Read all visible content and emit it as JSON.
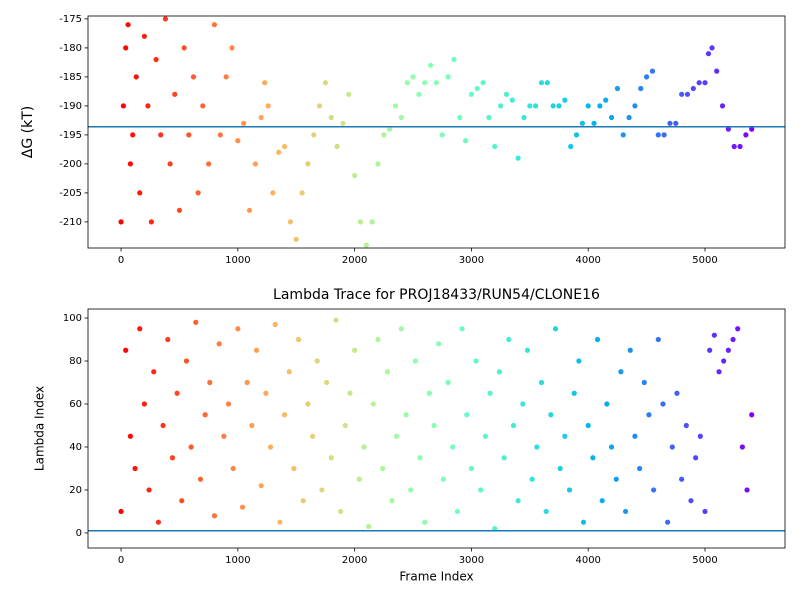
{
  "chart_data": [
    {
      "type": "scatter",
      "ylabel": "ΔG (kT)",
      "colormap": "rainbow_r",
      "x": [
        0,
        20,
        40,
        60,
        80,
        100,
        130,
        160,
        200,
        230,
        260,
        300,
        340,
        380,
        420,
        460,
        500,
        540,
        580,
        620,
        660,
        700,
        750,
        800,
        850,
        900,
        950,
        1000,
        1050,
        1100,
        1150,
        1200,
        1230,
        1260,
        1300,
        1350,
        1400,
        1450,
        1500,
        1550,
        1600,
        1650,
        1700,
        1750,
        1800,
        1850,
        1900,
        1950,
        2000,
        2050,
        2100,
        2150,
        2200,
        2250,
        2300,
        2350,
        2400,
        2450,
        2500,
        2550,
        2600,
        2650,
        2700,
        2750,
        2800,
        2850,
        2900,
        2950,
        3000,
        3050,
        3100,
        3150,
        3200,
        3250,
        3300,
        3350,
        3400,
        3450,
        3500,
        3550,
        3600,
        3650,
        3700,
        3750,
        3800,
        3850,
        3900,
        3950,
        4000,
        4050,
        4100,
        4150,
        4200,
        4250,
        4300,
        4350,
        4400,
        4450,
        4500,
        4550,
        4600,
        4650,
        4700,
        4750,
        4800,
        4850,
        4900,
        4950,
        5000,
        5030,
        5060,
        5100,
        5150,
        5200,
        5250,
        5300,
        5350,
        5400
      ],
      "values": [
        -210,
        -190,
        -180,
        -176,
        -200,
        -195,
        -185,
        -205,
        -178,
        -190,
        -210,
        -182,
        -195,
        -175,
        -200,
        -188,
        -208,
        -180,
        -195,
        -185,
        -205,
        -190,
        -200,
        -176,
        -195,
        -185,
        -180,
        -196,
        -193,
        -208,
        -200,
        -192,
        -186,
        -190,
        -205,
        -198,
        -197,
        -210,
        -213,
        -205,
        -200,
        -195,
        -190,
        -186,
        -192,
        -197,
        -193,
        -188,
        -202,
        -210,
        -214,
        -210,
        -200,
        -195,
        -194,
        -190,
        -192,
        -186,
        -185,
        -188,
        -186,
        -183,
        -186,
        -195,
        -185,
        -182,
        -192,
        -196,
        -188,
        -187,
        -186,
        -192,
        -197,
        -190,
        -188,
        -189,
        -199,
        -192,
        -190,
        -190,
        -186,
        -186,
        -190,
        -190,
        -189,
        -197,
        -195,
        -193,
        -190,
        -193,
        -190,
        -189,
        -192,
        -187,
        -195,
        -192,
        -190,
        -187,
        -185,
        -184,
        -195,
        -195,
        -193,
        -193,
        -188,
        -188,
        -187,
        -186,
        -186,
        -181,
        -180,
        -184,
        -190,
        -194,
        -197,
        -197,
        -195,
        -194
      ],
      "hline": -193.6,
      "line_color": "#1f77b4",
      "xlim": [
        -283,
        5685
      ],
      "xticks": [
        0,
        1000,
        2000,
        3000,
        4000,
        5000
      ],
      "ylim": [
        -214.5,
        -174.5
      ],
      "yticks": [
        -210,
        -205,
        -200,
        -195,
        -190,
        -185,
        -180,
        -175
      ]
    },
    {
      "type": "scatter",
      "title": "Lambda Trace for PROJ18433/RUN54/CLONE16",
      "xlabel": "Frame Index",
      "ylabel": "Lambda Index",
      "colormap": "rainbow_r",
      "x": [
        0,
        40,
        80,
        120,
        160,
        200,
        240,
        280,
        320,
        360,
        400,
        440,
        480,
        520,
        560,
        600,
        640,
        680,
        720,
        760,
        800,
        840,
        880,
        920,
        960,
        1000,
        1040,
        1080,
        1120,
        1160,
        1200,
        1240,
        1280,
        1320,
        1360,
        1400,
        1440,
        1480,
        1520,
        1560,
        1600,
        1640,
        1680,
        1720,
        1760,
        1800,
        1840,
        1880,
        1920,
        1960,
        2000,
        2040,
        2080,
        2120,
        2160,
        2200,
        2240,
        2280,
        2320,
        2360,
        2400,
        2440,
        2480,
        2520,
        2560,
        2600,
        2640,
        2680,
        2720,
        2760,
        2800,
        2840,
        2880,
        2920,
        2960,
        3000,
        3040,
        3080,
        3120,
        3160,
        3200,
        3240,
        3280,
        3320,
        3360,
        3400,
        3440,
        3480,
        3520,
        3560,
        3600,
        3640,
        3680,
        3720,
        3760,
        3800,
        3840,
        3880,
        3920,
        3960,
        4000,
        4040,
        4080,
        4120,
        4160,
        4200,
        4240,
        4280,
        4320,
        4360,
        4400,
        4440,
        4480,
        4520,
        4560,
        4600,
        4640,
        4680,
        4720,
        4760,
        4800,
        4840,
        4880,
        4920,
        4960,
        5000,
        5040,
        5080,
        5120,
        5160,
        5200,
        5240,
        5280,
        5320,
        5360,
        5400
      ],
      "values": [
        10,
        85,
        45,
        30,
        95,
        60,
        20,
        75,
        5,
        50,
        90,
        35,
        65,
        15,
        80,
        40,
        98,
        25,
        55,
        70,
        8,
        88,
        45,
        60,
        30,
        95,
        12,
        70,
        50,
        85,
        22,
        65,
        40,
        97,
        5,
        55,
        75,
        30,
        90,
        15,
        60,
        45,
        80,
        20,
        70,
        35,
        99,
        10,
        50,
        65,
        85,
        25,
        40,
        3,
        60,
        90,
        30,
        75,
        15,
        45,
        95,
        55,
        20,
        80,
        35,
        5,
        65,
        50,
        88,
        25,
        70,
        40,
        10,
        95,
        55,
        30,
        80,
        20,
        45,
        65,
        2,
        75,
        35,
        90,
        50,
        15,
        60,
        85,
        25,
        40,
        70,
        10,
        55,
        95,
        30,
        45,
        20,
        65,
        80,
        5,
        50,
        35,
        90,
        15,
        60,
        40,
        25,
        75,
        10,
        85,
        45,
        30,
        70,
        55,
        20,
        90,
        60,
        5,
        40,
        65,
        25,
        50,
        15,
        35,
        45,
        10,
        85,
        92,
        75,
        80,
        85,
        90,
        95,
        40,
        20,
        55
      ],
      "hline": 1,
      "line_color": "#1f77b4",
      "xlim": [
        -283,
        5685
      ],
      "xticks": [
        0,
        1000,
        2000,
        3000,
        4000,
        5000
      ],
      "ylim": [
        -7,
        104.2
      ],
      "yticks": [
        0,
        20,
        40,
        60,
        80,
        100
      ]
    }
  ]
}
